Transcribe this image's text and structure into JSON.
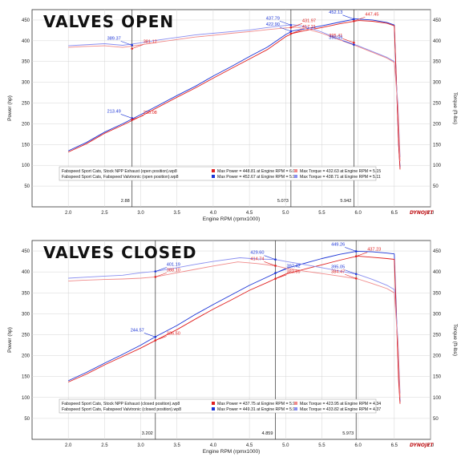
{
  "colors": {
    "open_power": "#1a33d6",
    "open_torque": "#8a8ff0",
    "stock_power": "#e02020",
    "stock_torque": "#f08a8a",
    "grid": "#d4d4d4",
    "frame": "#333333"
  },
  "chart_data": [
    {
      "type": "line",
      "title": "VALVES OPEN",
      "xlabel": "Engine RPM (rpmx1000)",
      "ylabel": "Power (hp)",
      "y2label": "Torque (ft-lbs)",
      "xlim": [
        1.5,
        7.0
      ],
      "ylim": [
        0,
        475
      ],
      "x_ticks": [
        "2.0",
        "2.5",
        "3.0",
        "3.5",
        "4.0",
        "4.5",
        "5.0",
        "5.5",
        "6.0",
        "6.5",
        "7.0"
      ],
      "y_ticks": [
        "50",
        "100",
        "150",
        "200",
        "250",
        "300",
        "350",
        "400",
        "450"
      ],
      "cursors": [
        {
          "x": 2.88,
          "label": "2.88"
        },
        {
          "x": 5.073,
          "label": "5.073"
        },
        {
          "x": 5.942,
          "label": "5.942"
        }
      ],
      "legend": {
        "rows": [
          {
            "name": "Fabspeed Sport Cats, Stock NPP Exhaust (open position).wp8",
            "max_power": "Max Power = 448.81 at Engine RPM = 6.01",
            "max_torque": "Max Torque = 432.63 at Engine RPM = 5.15",
            "color": "#e02020"
          },
          {
            "name": "Fabspeed Sport Cats, Fabspeed Valvtronic (open position).wp8",
            "max_power": "Max Power = 452.67 at Engine RPM = 5.97",
            "max_torque": "Max Torque = 438.71 at Engine RPM = 5.11",
            "color": "#1a33d6"
          }
        ]
      },
      "annotations": [
        {
          "text": "389.37",
          "x": 2.88,
          "y": 389.37,
          "color": "#1a33d6",
          "side": "left"
        },
        {
          "text": "381.12",
          "x": 2.88,
          "y": 381.12,
          "color": "#e02020",
          "side": "right"
        },
        {
          "text": "213.49",
          "x": 2.88,
          "y": 213.49,
          "color": "#1a33d6",
          "side": "left"
        },
        {
          "text": "210.08",
          "x": 2.88,
          "y": 210.08,
          "color": "#e02020",
          "side": "right"
        },
        {
          "text": "437.79",
          "x": 5.073,
          "y": 437.79,
          "color": "#1a33d6",
          "side": "left"
        },
        {
          "text": "422.90",
          "x": 5.073,
          "y": 422.9,
          "color": "#1a33d6",
          "side": "left"
        },
        {
          "text": "431.97",
          "x": 5.073,
          "y": 431.97,
          "color": "#e02020",
          "side": "right"
        },
        {
          "text": "417.21",
          "x": 5.073,
          "y": 417.21,
          "color": "#e02020",
          "side": "right"
        },
        {
          "text": "452.13",
          "x": 5.942,
          "y": 452.13,
          "color": "#1a33d6",
          "side": "left"
        },
        {
          "text": "447.45",
          "x": 5.942,
          "y": 447.45,
          "color": "#e02020",
          "side": "right"
        },
        {
          "text": "395.41",
          "x": 5.942,
          "y": 395.41,
          "color": "#e02020",
          "side": "left"
        },
        {
          "text": "390.55",
          "x": 5.942,
          "y": 390.55,
          "color": "#1a33d6",
          "side": "left"
        }
      ],
      "series": [
        {
          "name": "Fabspeed Valvtronic (open position) Power",
          "color": "#1a33d6",
          "x": [
            2.0,
            2.25,
            2.5,
            2.75,
            3.0,
            3.25,
            3.5,
            3.75,
            4.0,
            4.25,
            4.5,
            4.75,
            5.0,
            5.1,
            5.25,
            5.5,
            5.75,
            5.97,
            6.2,
            6.4,
            6.5,
            6.53,
            6.56,
            6.58
          ],
          "y": [
            135,
            155,
            180,
            200,
            222,
            245,
            268,
            290,
            315,
            338,
            362,
            385,
            415,
            424,
            428,
            436,
            445,
            452.67,
            450,
            444,
            438,
            300,
            150,
            95
          ]
        },
        {
          "name": "Stock NPP Exhaust (open position) Power",
          "color": "#e02020",
          "x": [
            2.0,
            2.25,
            2.5,
            2.75,
            3.0,
            3.25,
            3.5,
            3.75,
            4.0,
            4.25,
            4.5,
            4.75,
            5.0,
            5.1,
            5.25,
            5.5,
            5.75,
            6.01,
            6.2,
            6.4,
            6.5,
            6.53,
            6.56,
            6.58
          ],
          "y": [
            132,
            152,
            177,
            197,
            218,
            241,
            264,
            286,
            310,
            333,
            356,
            379,
            410,
            418,
            424,
            432,
            441,
            448.81,
            447,
            442,
            436,
            300,
            150,
            90
          ]
        },
        {
          "name": "Fabspeed Valvtronic (open position) Torque",
          "color": "#8a8ff0",
          "x": [
            2.0,
            2.2,
            2.5,
            2.75,
            3.0,
            3.25,
            3.5,
            3.75,
            4.0,
            4.25,
            4.5,
            4.75,
            5.0,
            5.11,
            5.3,
            5.5,
            5.75,
            6.0,
            6.2,
            6.4,
            6.5,
            6.55,
            6.58
          ],
          "y": [
            388,
            390,
            393,
            389,
            395,
            402,
            408,
            414,
            418,
            422,
            426,
            432,
            437,
            438.71,
            433,
            421,
            403,
            388,
            374,
            360,
            350,
            250,
            120
          ]
        },
        {
          "name": "Stock NPP Exhaust (open position) Torque",
          "color": "#f08a8a",
          "x": [
            2.0,
            2.2,
            2.5,
            2.75,
            3.0,
            3.25,
            3.5,
            3.75,
            4.0,
            4.25,
            4.5,
            4.75,
            5.0,
            5.15,
            5.3,
            5.5,
            5.75,
            6.0,
            6.2,
            6.4,
            6.5,
            6.55,
            6.58
          ],
          "y": [
            384,
            386,
            388,
            384,
            390,
            397,
            403,
            409,
            413,
            418,
            422,
            427,
            431,
            432.63,
            428,
            418,
            402,
            386,
            372,
            358,
            348,
            240,
            110
          ]
        }
      ]
    },
    {
      "type": "line",
      "title": "VALVES CLOSED",
      "xlabel": "Engine RPM (rpmx1000)",
      "ylabel": "Power (hp)",
      "y2label": "Torque (ft-lbs)",
      "xlim": [
        1.5,
        7.0
      ],
      "ylim": [
        0,
        475
      ],
      "x_ticks": [
        "2.0",
        "2.5",
        "3.0",
        "3.5",
        "4.0",
        "4.5",
        "5.0",
        "5.5",
        "6.0",
        "6.5",
        "7.0"
      ],
      "y_ticks": [
        "50",
        "100",
        "150",
        "200",
        "250",
        "300",
        "350",
        "400",
        "450"
      ],
      "cursors": [
        {
          "x": 3.202,
          "label": "3.202"
        },
        {
          "x": 4.859,
          "label": "4.859"
        },
        {
          "x": 5.973,
          "label": "5.973"
        }
      ],
      "legend": {
        "rows": [
          {
            "name": "Fabspeed Sport Cats, Stock NPP Exhaust (closed position).wp8",
            "max_power": "Max Power = 437.75 at Engine RPM = 5.99",
            "max_torque": "Max Torque = 423.95 at Engine RPM = 4.34",
            "color": "#e02020"
          },
          {
            "name": "Fabspeed Sport Cats, Fabspeed Valvtronic (closed position).wp8",
            "max_power": "Max Power = 449.31 at Engine RPM = 5.98",
            "max_torque": "Max Torque = 433.82 at Engine RPM = 4.37",
            "color": "#1a33d6"
          }
        ]
      },
      "annotations": [
        {
          "text": "401.19",
          "x": 3.202,
          "y": 401.19,
          "color": "#1a33d6",
          "side": "right"
        },
        {
          "text": "388.10",
          "x": 3.202,
          "y": 388.1,
          "color": "#e02020",
          "side": "right"
        },
        {
          "text": "244.57",
          "x": 3.202,
          "y": 244.57,
          "color": "#1a33d6",
          "side": "left"
        },
        {
          "text": "236.50",
          "x": 3.202,
          "y": 236.5,
          "color": "#e02020",
          "side": "right"
        },
        {
          "text": "414.74",
          "x": 4.859,
          "y": 414.74,
          "color": "#e02020",
          "side": "left"
        },
        {
          "text": "429.60",
          "x": 4.859,
          "y": 429.6,
          "color": "#1a33d6",
          "side": "left"
        },
        {
          "text": "397.42",
          "x": 4.859,
          "y": 397.42,
          "color": "#1a33d6",
          "side": "right"
        },
        {
          "text": "383.69",
          "x": 4.859,
          "y": 383.69,
          "color": "#e02020",
          "side": "right"
        },
        {
          "text": "449.26",
          "x": 5.973,
          "y": 449.26,
          "color": "#1a33d6",
          "side": "left"
        },
        {
          "text": "437.23",
          "x": 5.973,
          "y": 437.23,
          "color": "#e02020",
          "side": "right"
        },
        {
          "text": "395.05",
          "x": 5.973,
          "y": 395.05,
          "color": "#1a33d6",
          "side": "left"
        },
        {
          "text": "384.47",
          "x": 5.973,
          "y": 384.47,
          "color": "#e02020",
          "side": "left"
        }
      ],
      "series": [
        {
          "name": "Fabspeed Valvtronic (closed position) Power",
          "color": "#1a33d6",
          "x": [
            2.0,
            2.25,
            2.5,
            2.75,
            3.0,
            3.2,
            3.5,
            3.75,
            4.0,
            4.25,
            4.5,
            4.75,
            4.86,
            5.0,
            5.25,
            5.5,
            5.75,
            5.98,
            6.2,
            6.4,
            6.5,
            6.53,
            6.56,
            6.58
          ],
          "y": [
            140,
            160,
            182,
            203,
            225,
            245,
            272,
            298,
            322,
            345,
            368,
            388,
            397,
            408,
            420,
            432,
            442,
            449.31,
            448,
            445,
            443,
            300,
            150,
            90
          ]
        },
        {
          "name": "Stock NPP Exhaust (closed position) Power",
          "color": "#e02020",
          "x": [
            2.0,
            2.25,
            2.5,
            2.75,
            3.0,
            3.2,
            3.5,
            3.75,
            4.0,
            4.25,
            4.5,
            4.75,
            4.86,
            5.0,
            5.25,
            5.5,
            5.75,
            5.99,
            6.2,
            6.4,
            6.5,
            6.53,
            6.56,
            6.58
          ],
          "y": [
            137,
            156,
            178,
            198,
            218,
            236,
            262,
            287,
            311,
            333,
            356,
            375,
            384,
            395,
            406,
            417,
            428,
            437.75,
            435,
            432,
            430,
            290,
            140,
            85
          ]
        },
        {
          "name": "Fabspeed Valvtronic (closed position) Torque",
          "color": "#8a8ff0",
          "x": [
            2.0,
            2.2,
            2.5,
            2.75,
            3.0,
            3.2,
            3.5,
            3.75,
            4.0,
            4.37,
            4.6,
            4.86,
            5.0,
            5.25,
            5.5,
            5.75,
            6.0,
            6.2,
            6.4,
            6.5,
            6.55,
            6.58
          ],
          "y": [
            385,
            387,
            390,
            392,
            398,
            401,
            410,
            418,
            425,
            433.82,
            431,
            429.6,
            425,
            418,
            410,
            402,
            394,
            382,
            368,
            358,
            240,
            110
          ]
        },
        {
          "name": "Stock NPP Exhaust (closed position) Torque",
          "color": "#f08a8a",
          "x": [
            2.0,
            2.2,
            2.5,
            2.75,
            3.0,
            3.2,
            3.5,
            3.75,
            4.0,
            4.34,
            4.6,
            4.86,
            5.0,
            5.25,
            5.5,
            5.75,
            6.0,
            6.2,
            6.4,
            6.5,
            6.55,
            6.58
          ],
          "y": [
            378,
            380,
            382,
            383,
            385,
            388,
            398,
            406,
            414,
            423.95,
            420,
            414.74,
            409,
            402,
            396,
            390,
            383,
            372,
            360,
            350,
            230,
            100
          ]
        }
      ]
    }
  ],
  "branding": {
    "logo": "DYNOJET"
  }
}
